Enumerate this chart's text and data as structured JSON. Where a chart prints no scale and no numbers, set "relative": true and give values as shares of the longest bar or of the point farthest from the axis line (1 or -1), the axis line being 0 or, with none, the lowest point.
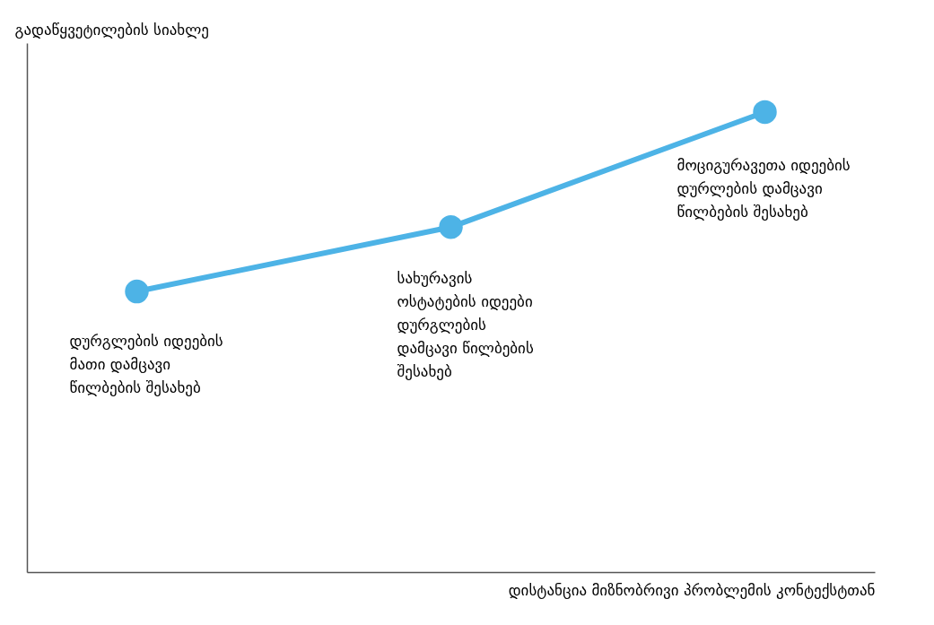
{
  "chart_data": {
    "type": "line",
    "xlabel": "დისტანცია მიზნობრივი პრობლემის კონტექსტთან",
    "ylabel": "გადაწყვეტილების სიახლე",
    "categories": [
      null,
      null,
      null
    ],
    "relative": true,
    "marker": "circle",
    "series": [
      {
        "color": "#4db3e6",
        "values": [
          0.61,
          0.75,
          1
        ]
      }
    ],
    "annotations": [
      "დურგლების იდეების\nმათი დამცავი\nწილბების შესახებ",
      "სახურავის\nოსტატების იდეები\nდურგლების\nდამცავი წილბების\nშესახებ",
      "მოციგურავეთა იდეების\nდურლების დამცავი\nწილბების შესახებ"
    ]
  }
}
